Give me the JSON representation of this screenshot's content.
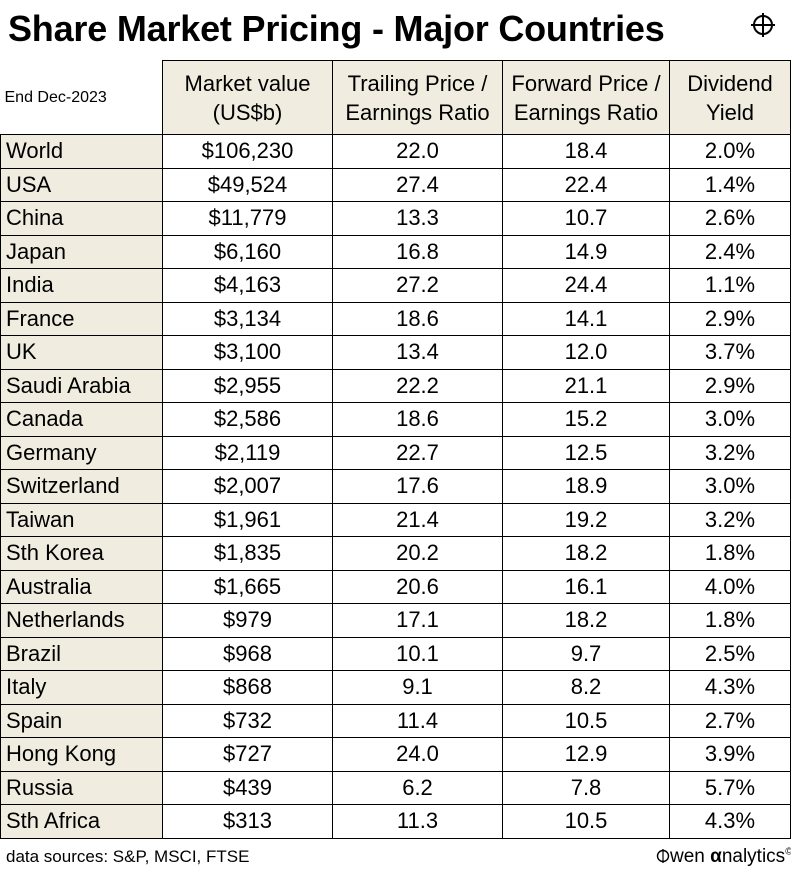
{
  "title": "Share Market Pricing - Major Countries",
  "logo_icon": "crosshair-icon",
  "table": {
    "corner_label": "End Dec-2023",
    "headers": [
      [
        "Market value",
        "(US$b)"
      ],
      [
        "Trailing Price /",
        "Earnings Ratio"
      ],
      [
        "Forward Price /",
        "Earnings Ratio"
      ],
      [
        "Dividend",
        "Yield"
      ]
    ],
    "rows": [
      [
        "World",
        "$106,230",
        "22.0",
        "18.4",
        "2.0%"
      ],
      [
        "USA",
        "$49,524",
        "27.4",
        "22.4",
        "1.4%"
      ],
      [
        "China",
        "$11,779",
        "13.3",
        "10.7",
        "2.6%"
      ],
      [
        "Japan",
        "$6,160",
        "16.8",
        "14.9",
        "2.4%"
      ],
      [
        "India",
        "$4,163",
        "27.2",
        "24.4",
        "1.1%"
      ],
      [
        "France",
        "$3,134",
        "18.6",
        "14.1",
        "2.9%"
      ],
      [
        "UK",
        "$3,100",
        "13.4",
        "12.0",
        "3.7%"
      ],
      [
        "Saudi Arabia",
        "$2,955",
        "22.2",
        "21.1",
        "2.9%"
      ],
      [
        "Canada",
        "$2,586",
        "18.6",
        "15.2",
        "3.0%"
      ],
      [
        "Germany",
        "$2,119",
        "22.7",
        "12.5",
        "3.2%"
      ],
      [
        "Switzerland",
        "$2,007",
        "17.6",
        "18.9",
        "3.0%"
      ],
      [
        "Taiwan",
        "$1,961",
        "21.4",
        "19.2",
        "3.2%"
      ],
      [
        "Sth Korea",
        "$1,835",
        "20.2",
        "18.2",
        "1.8%"
      ],
      [
        "Australia",
        "$1,665",
        "20.6",
        "16.1",
        "4.0%"
      ],
      [
        "Netherlands",
        "$979",
        "17.1",
        "18.2",
        "1.8%"
      ],
      [
        "Brazil",
        "$968",
        "10.1",
        "9.7",
        "2.5%"
      ],
      [
        "Italy",
        "$868",
        "9.1",
        "8.2",
        "4.3%"
      ],
      [
        "Spain",
        "$732",
        "11.4",
        "10.5",
        "2.7%"
      ],
      [
        "Hong Kong",
        "$727",
        "24.0",
        "12.9",
        "3.9%"
      ],
      [
        "Russia",
        "$439",
        "6.2",
        "7.8",
        "5.7%"
      ],
      [
        "Sth Africa",
        "$313",
        "11.3",
        "10.5",
        "4.3%"
      ]
    ]
  },
  "footer": {
    "sources": "data sources: S&P, MSCI, FTSE",
    "brand_prefix": "wen ",
    "brand_alpha": "α",
    "brand_suffix": "nalytics",
    "copyright": "©",
    "brand_icon": "owen-o-crosshair-icon"
  },
  "colors": {
    "label_fill": "#f0ece0",
    "border": "#000000"
  }
}
